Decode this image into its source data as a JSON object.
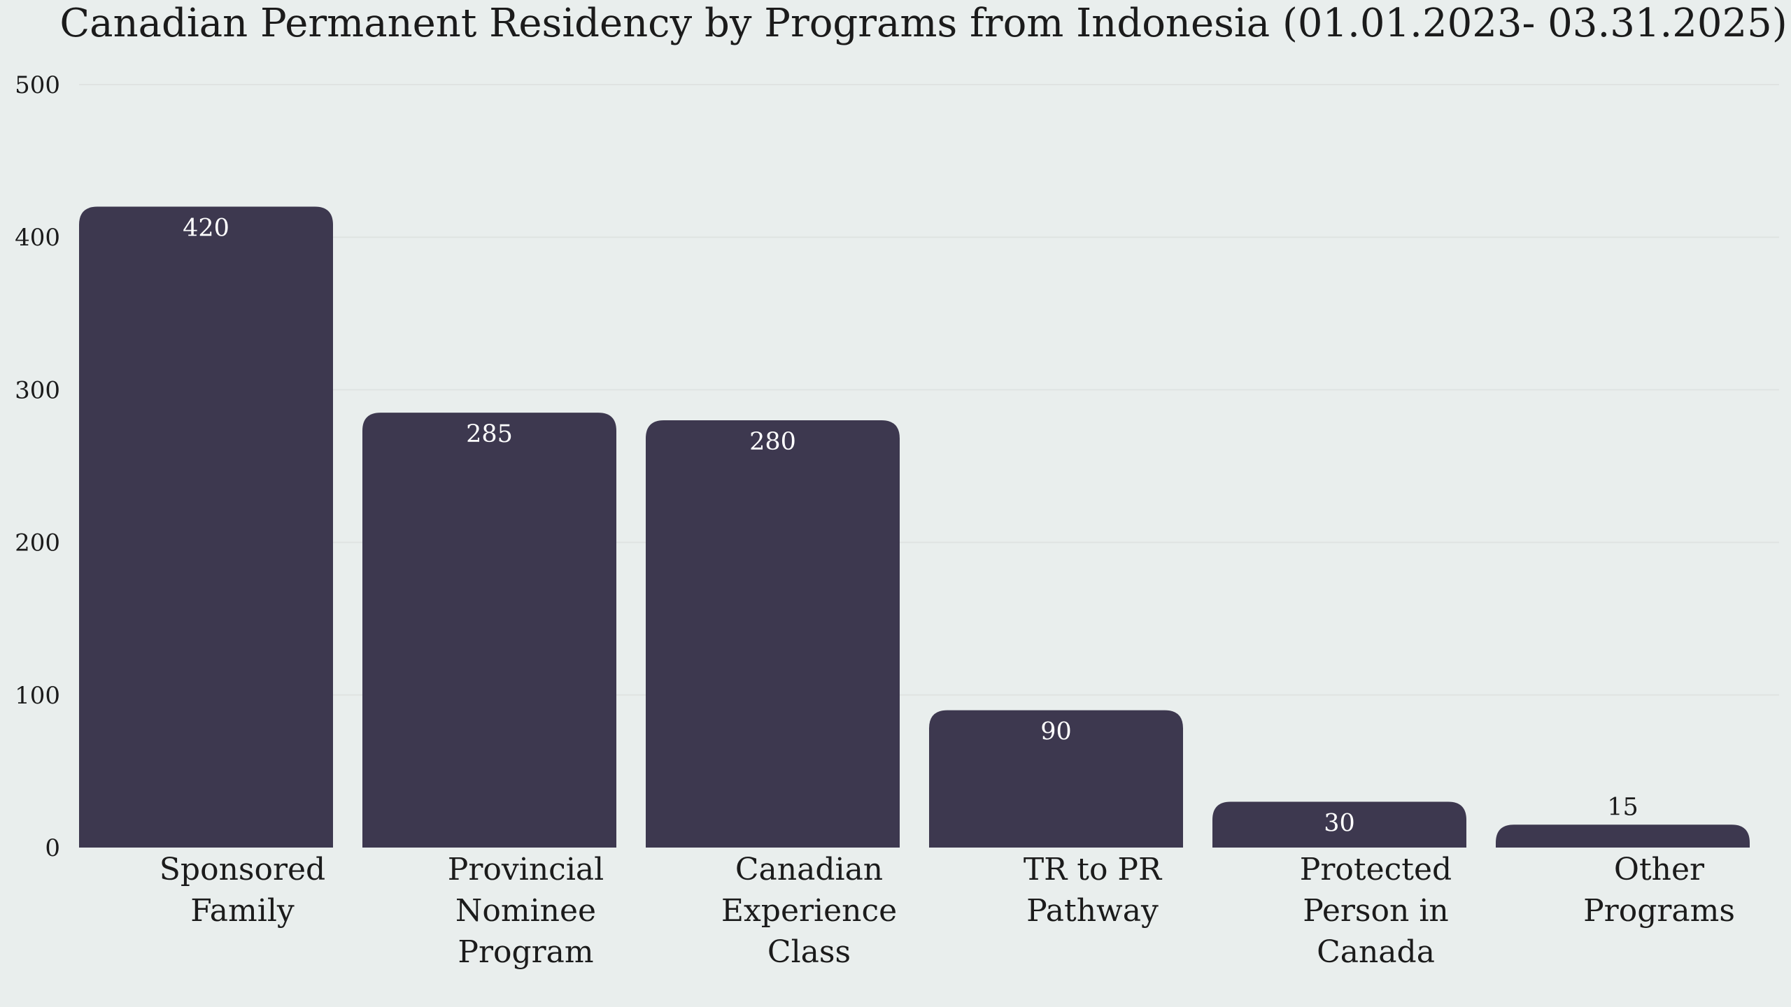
{
  "chart_data": {
    "type": "bar",
    "title": "Canadian Permanent Residency by Programs from Indonesia (01.01.2023- 03.31.2025)",
    "xlabel": "",
    "ylabel": "",
    "categories": [
      [
        "Sponsored",
        "Family"
      ],
      [
        "Provincial",
        "Nominee",
        "Program"
      ],
      [
        "Canadian",
        "Experience",
        "Class"
      ],
      [
        "TR to PR",
        "Pathway"
      ],
      [
        "Protected",
        "Person in",
        "Canada"
      ],
      [
        "Other",
        "Programs"
      ]
    ],
    "values": [
      420,
      285,
      280,
      90,
      30,
      15
    ],
    "ylim": [
      0,
      500
    ],
    "yticks": [
      0,
      100,
      200,
      300,
      400,
      500
    ],
    "grid": true,
    "bar_color": "#3d384f",
    "label_color_inside": "#ffffff",
    "label_color_outside": "#1b1b1b"
  }
}
